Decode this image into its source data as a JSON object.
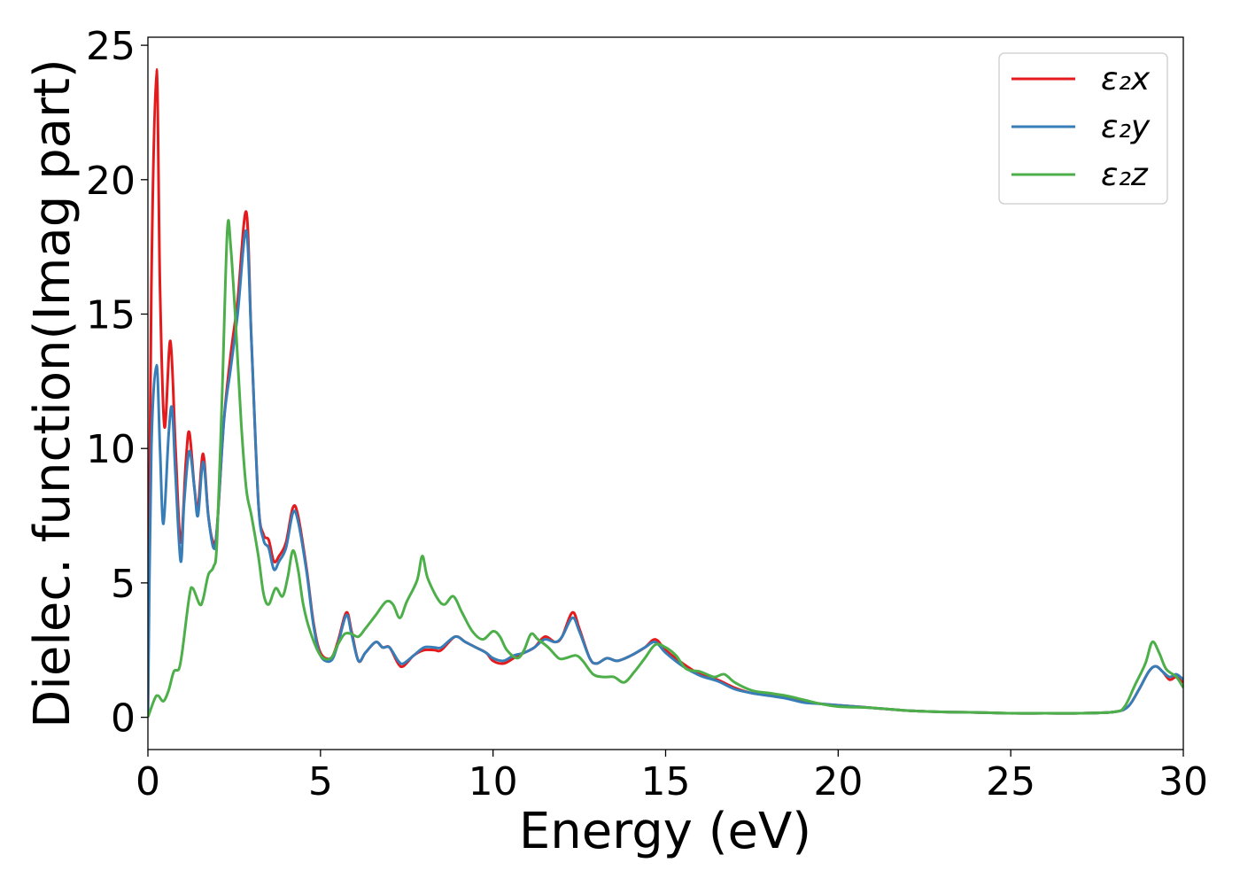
{
  "chart_data": {
    "type": "line",
    "title": "",
    "xlabel": "Energy (eV)",
    "ylabel": "Dielec. function(Imag part)",
    "xlim": [
      0,
      30
    ],
    "ylim": [
      -1.2,
      25.3
    ],
    "xticks": [
      0,
      5,
      10,
      15,
      20,
      25,
      30
    ],
    "yticks": [
      0,
      5,
      10,
      15,
      20,
      25
    ],
    "grid": false,
    "legend_position": "top-right",
    "series": [
      {
        "name": "ε₂x",
        "color": "#e41a1c",
        "points": [
          [
            0,
            0
          ],
          [
            0.1,
            16
          ],
          [
            0.25,
            24.1
          ],
          [
            0.35,
            16
          ],
          [
            0.48,
            10.8
          ],
          [
            0.65,
            14
          ],
          [
            0.8,
            10
          ],
          [
            0.95,
            6.5
          ],
          [
            1.1,
            9.5
          ],
          [
            1.2,
            10.6
          ],
          [
            1.35,
            8.5
          ],
          [
            1.45,
            7.8
          ],
          [
            1.6,
            9.8
          ],
          [
            1.75,
            7.5
          ],
          [
            1.9,
            6.5
          ],
          [
            2.0,
            7
          ],
          [
            2.2,
            11
          ],
          [
            2.4,
            13.5
          ],
          [
            2.6,
            15.5
          ],
          [
            2.85,
            18.8
          ],
          [
            3.0,
            14
          ],
          [
            3.2,
            8
          ],
          [
            3.35,
            6.8
          ],
          [
            3.5,
            6.6
          ],
          [
            3.65,
            5.8
          ],
          [
            3.8,
            6
          ],
          [
            4.0,
            6.5
          ],
          [
            4.2,
            7.8
          ],
          [
            4.35,
            7.5
          ],
          [
            4.6,
            5.5
          ],
          [
            4.8,
            3.5
          ],
          [
            5.0,
            2.4
          ],
          [
            5.3,
            2.2
          ],
          [
            5.5,
            2.8
          ],
          [
            5.75,
            3.9
          ],
          [
            5.9,
            3.2
          ],
          [
            6.1,
            2.1
          ],
          [
            6.3,
            2.4
          ],
          [
            6.6,
            2.8
          ],
          [
            6.8,
            2.6
          ],
          [
            7.0,
            2.6
          ],
          [
            7.25,
            2.0
          ],
          [
            7.4,
            1.9
          ],
          [
            7.7,
            2.3
          ],
          [
            8.0,
            2.5
          ],
          [
            8.3,
            2.5
          ],
          [
            8.5,
            2.5
          ],
          [
            8.9,
            3.0
          ],
          [
            9.2,
            2.8
          ],
          [
            9.5,
            2.6
          ],
          [
            9.8,
            2.4
          ],
          [
            10.0,
            2.1
          ],
          [
            10.3,
            2.0
          ],
          [
            10.6,
            2.2
          ],
          [
            10.9,
            2.4
          ],
          [
            11.2,
            2.6
          ],
          [
            11.5,
            3.0
          ],
          [
            11.8,
            2.8
          ],
          [
            12.0,
            3.0
          ],
          [
            12.3,
            3.9
          ],
          [
            12.5,
            3.3
          ],
          [
            12.8,
            2.2
          ],
          [
            13.0,
            2.0
          ],
          [
            13.3,
            2.2
          ],
          [
            13.6,
            2.1
          ],
          [
            14.0,
            2.3
          ],
          [
            14.4,
            2.6
          ],
          [
            14.7,
            2.9
          ],
          [
            15.0,
            2.5
          ],
          [
            15.5,
            2.0
          ],
          [
            16.0,
            1.6
          ],
          [
            16.5,
            1.4
          ],
          [
            17.0,
            1.1
          ],
          [
            17.5,
            0.9
          ],
          [
            18.0,
            0.85
          ],
          [
            18.5,
            0.75
          ],
          [
            19.0,
            0.6
          ],
          [
            19.5,
            0.5
          ],
          [
            20.0,
            0.45
          ],
          [
            21.0,
            0.35
          ],
          [
            22.0,
            0.25
          ],
          [
            23.0,
            0.2
          ],
          [
            24.0,
            0.18
          ],
          [
            25.0,
            0.15
          ],
          [
            26.0,
            0.15
          ],
          [
            27.0,
            0.15
          ],
          [
            28.0,
            0.2
          ],
          [
            28.4,
            0.4
          ],
          [
            28.7,
            1.0
          ],
          [
            29.0,
            1.7
          ],
          [
            29.2,
            1.9
          ],
          [
            29.4,
            1.7
          ],
          [
            29.6,
            1.4
          ],
          [
            29.8,
            1.5
          ],
          [
            30.0,
            1.3
          ]
        ]
      },
      {
        "name": "ε₂y",
        "color": "#377eb8",
        "points": [
          [
            0,
            0
          ],
          [
            0.1,
            10
          ],
          [
            0.25,
            13.1
          ],
          [
            0.35,
            10
          ],
          [
            0.45,
            7.2
          ],
          [
            0.6,
            10.5
          ],
          [
            0.7,
            11.5
          ],
          [
            0.8,
            9
          ],
          [
            0.95,
            5.8
          ],
          [
            1.05,
            8
          ],
          [
            1.2,
            9.9
          ],
          [
            1.35,
            8.5
          ],
          [
            1.45,
            7.5
          ],
          [
            1.6,
            9.5
          ],
          [
            1.75,
            7.5
          ],
          [
            1.9,
            6.3
          ],
          [
            2.0,
            7
          ],
          [
            2.2,
            11
          ],
          [
            2.4,
            13
          ],
          [
            2.6,
            15
          ],
          [
            2.85,
            18.1
          ],
          [
            3.0,
            14
          ],
          [
            3.2,
            8
          ],
          [
            3.35,
            6.6
          ],
          [
            3.5,
            6.3
          ],
          [
            3.65,
            5.5
          ],
          [
            3.8,
            5.8
          ],
          [
            4.0,
            6.3
          ],
          [
            4.2,
            7.6
          ],
          [
            4.35,
            7.3
          ],
          [
            4.6,
            5.4
          ],
          [
            4.8,
            3.4
          ],
          [
            5.0,
            2.3
          ],
          [
            5.3,
            2.1
          ],
          [
            5.5,
            2.7
          ],
          [
            5.75,
            3.8
          ],
          [
            5.9,
            3.1
          ],
          [
            6.1,
            2.1
          ],
          [
            6.3,
            2.4
          ],
          [
            6.6,
            2.8
          ],
          [
            6.8,
            2.6
          ],
          [
            7.0,
            2.6
          ],
          [
            7.25,
            2.1
          ],
          [
            7.4,
            2.0
          ],
          [
            7.7,
            2.3
          ],
          [
            8.0,
            2.6
          ],
          [
            8.3,
            2.6
          ],
          [
            8.5,
            2.6
          ],
          [
            8.9,
            3.0
          ],
          [
            9.2,
            2.8
          ],
          [
            9.5,
            2.6
          ],
          [
            9.8,
            2.4
          ],
          [
            10.0,
            2.2
          ],
          [
            10.3,
            2.1
          ],
          [
            10.6,
            2.3
          ],
          [
            10.9,
            2.4
          ],
          [
            11.2,
            2.6
          ],
          [
            11.5,
            2.9
          ],
          [
            11.8,
            2.8
          ],
          [
            12.0,
            3.0
          ],
          [
            12.3,
            3.7
          ],
          [
            12.5,
            3.2
          ],
          [
            12.8,
            2.2
          ],
          [
            13.0,
            2.0
          ],
          [
            13.3,
            2.2
          ],
          [
            13.6,
            2.1
          ],
          [
            14.0,
            2.3
          ],
          [
            14.4,
            2.6
          ],
          [
            14.7,
            2.8
          ],
          [
            15.0,
            2.4
          ],
          [
            15.5,
            1.9
          ],
          [
            16.0,
            1.55
          ],
          [
            16.5,
            1.35
          ],
          [
            17.0,
            1.05
          ],
          [
            17.5,
            0.9
          ],
          [
            18.0,
            0.8
          ],
          [
            18.5,
            0.7
          ],
          [
            19.0,
            0.55
          ],
          [
            19.5,
            0.5
          ],
          [
            20.0,
            0.45
          ],
          [
            21.0,
            0.35
          ],
          [
            22.0,
            0.25
          ],
          [
            23.0,
            0.2
          ],
          [
            24.0,
            0.18
          ],
          [
            25.0,
            0.15
          ],
          [
            26.0,
            0.15
          ],
          [
            27.0,
            0.15
          ],
          [
            28.0,
            0.2
          ],
          [
            28.4,
            0.4
          ],
          [
            28.7,
            1.0
          ],
          [
            29.0,
            1.7
          ],
          [
            29.2,
            1.9
          ],
          [
            29.4,
            1.7
          ],
          [
            29.6,
            1.5
          ],
          [
            29.8,
            1.6
          ],
          [
            30.0,
            1.4
          ]
        ]
      },
      {
        "name": "ε₂z",
        "color": "#4daf4a",
        "points": [
          [
            0,
            0
          ],
          [
            0.2,
            0.7
          ],
          [
            0.3,
            0.8
          ],
          [
            0.45,
            0.6
          ],
          [
            0.6,
            1.0
          ],
          [
            0.75,
            1.7
          ],
          [
            0.9,
            1.8
          ],
          [
            1.0,
            2.5
          ],
          [
            1.2,
            4.5
          ],
          [
            1.3,
            4.8
          ],
          [
            1.5,
            4.2
          ],
          [
            1.6,
            4.4
          ],
          [
            1.75,
            5.3
          ],
          [
            1.9,
            5.6
          ],
          [
            2.0,
            6.5
          ],
          [
            2.15,
            12
          ],
          [
            2.3,
            18.1
          ],
          [
            2.4,
            17.5
          ],
          [
            2.55,
            14.5
          ],
          [
            2.7,
            11
          ],
          [
            2.85,
            8.5
          ],
          [
            3.0,
            7.5
          ],
          [
            3.2,
            6
          ],
          [
            3.35,
            4.6
          ],
          [
            3.5,
            4.2
          ],
          [
            3.7,
            4.8
          ],
          [
            3.9,
            4.5
          ],
          [
            4.05,
            5.2
          ],
          [
            4.2,
            6.2
          ],
          [
            4.35,
            5.5
          ],
          [
            4.5,
            4.2
          ],
          [
            4.7,
            3.2
          ],
          [
            5.0,
            2.3
          ],
          [
            5.3,
            2.2
          ],
          [
            5.5,
            2.7
          ],
          [
            5.7,
            3.1
          ],
          [
            5.9,
            3.1
          ],
          [
            6.1,
            3.0
          ],
          [
            6.3,
            3.3
          ],
          [
            6.6,
            3.8
          ],
          [
            6.9,
            4.3
          ],
          [
            7.1,
            4.2
          ],
          [
            7.3,
            3.7
          ],
          [
            7.5,
            4.3
          ],
          [
            7.8,
            5.1
          ],
          [
            7.95,
            6.0
          ],
          [
            8.1,
            5.2
          ],
          [
            8.4,
            4.4
          ],
          [
            8.6,
            4.2
          ],
          [
            8.85,
            4.5
          ],
          [
            9.1,
            3.9
          ],
          [
            9.4,
            3.2
          ],
          [
            9.7,
            2.9
          ],
          [
            10.0,
            3.2
          ],
          [
            10.2,
            3.0
          ],
          [
            10.4,
            2.5
          ],
          [
            10.7,
            2.2
          ],
          [
            10.9,
            2.5
          ],
          [
            11.1,
            3.1
          ],
          [
            11.3,
            2.9
          ],
          [
            11.6,
            2.6
          ],
          [
            11.9,
            2.2
          ],
          [
            12.1,
            2.2
          ],
          [
            12.4,
            2.3
          ],
          [
            12.6,
            2.1
          ],
          [
            12.9,
            1.6
          ],
          [
            13.2,
            1.5
          ],
          [
            13.5,
            1.5
          ],
          [
            13.8,
            1.3
          ],
          [
            14.1,
            1.7
          ],
          [
            14.4,
            2.2
          ],
          [
            14.7,
            2.7
          ],
          [
            15.0,
            2.6
          ],
          [
            15.3,
            2.3
          ],
          [
            15.6,
            1.8
          ],
          [
            16.0,
            1.7
          ],
          [
            16.4,
            1.5
          ],
          [
            16.7,
            1.6
          ],
          [
            17.0,
            1.3
          ],
          [
            17.5,
            1.0
          ],
          [
            18.0,
            0.9
          ],
          [
            18.5,
            0.8
          ],
          [
            19.0,
            0.65
          ],
          [
            19.5,
            0.5
          ],
          [
            20.0,
            0.4
          ],
          [
            21.0,
            0.35
          ],
          [
            22.0,
            0.25
          ],
          [
            23.0,
            0.2
          ],
          [
            24.0,
            0.18
          ],
          [
            25.0,
            0.15
          ],
          [
            26.0,
            0.15
          ],
          [
            27.0,
            0.15
          ],
          [
            28.0,
            0.2
          ],
          [
            28.3,
            0.4
          ],
          [
            28.6,
            1.2
          ],
          [
            28.9,
            2.0
          ],
          [
            29.1,
            2.8
          ],
          [
            29.3,
            2.4
          ],
          [
            29.5,
            1.8
          ],
          [
            29.8,
            1.5
          ],
          [
            30.0,
            1.1
          ]
        ]
      }
    ]
  }
}
